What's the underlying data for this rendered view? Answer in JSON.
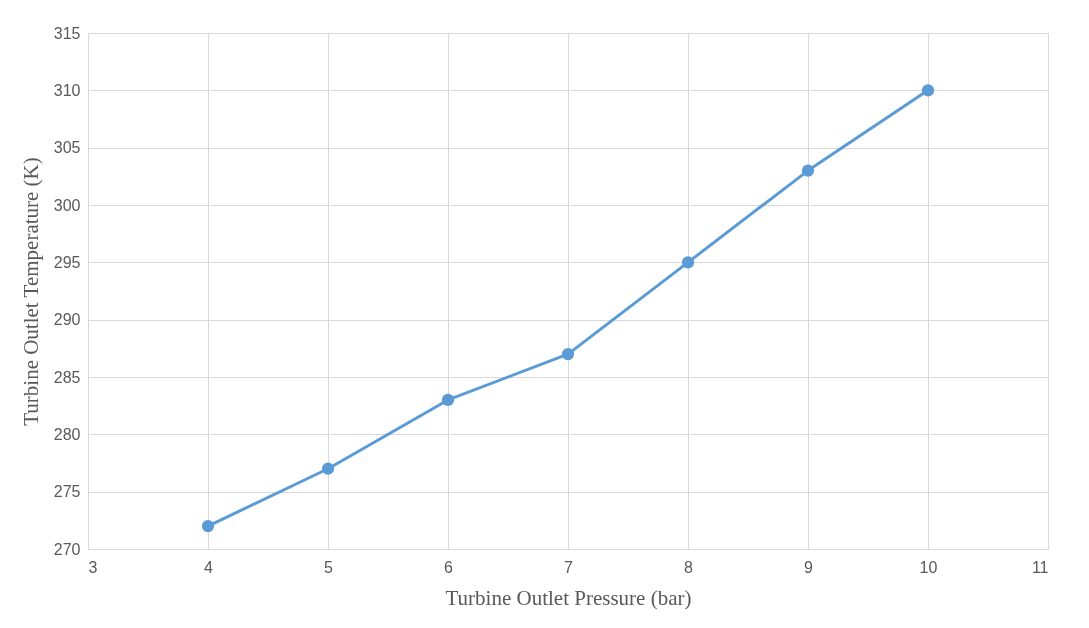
{
  "chart_data": {
    "type": "line",
    "xlabel": "Turbine Outlet Pressure (bar)",
    "ylabel": "Turbine Outlet Temperature (K)",
    "x": [
      4,
      5,
      6,
      7,
      8,
      9,
      10
    ],
    "series": [
      {
        "color": "#5b9bd5",
        "values": [
          272,
          277,
          283,
          287,
          295,
          303,
          310
        ]
      }
    ],
    "xlim": [
      3,
      11
    ],
    "xticks": [
      3,
      4,
      5,
      6,
      7,
      8,
      9,
      10,
      11
    ],
    "ylim": [
      270,
      315
    ],
    "yticks": [
      270,
      275,
      280,
      285,
      290,
      295,
      300,
      305,
      310,
      315
    ],
    "grid": true,
    "marker": "circle",
    "line_style": "solid"
  }
}
